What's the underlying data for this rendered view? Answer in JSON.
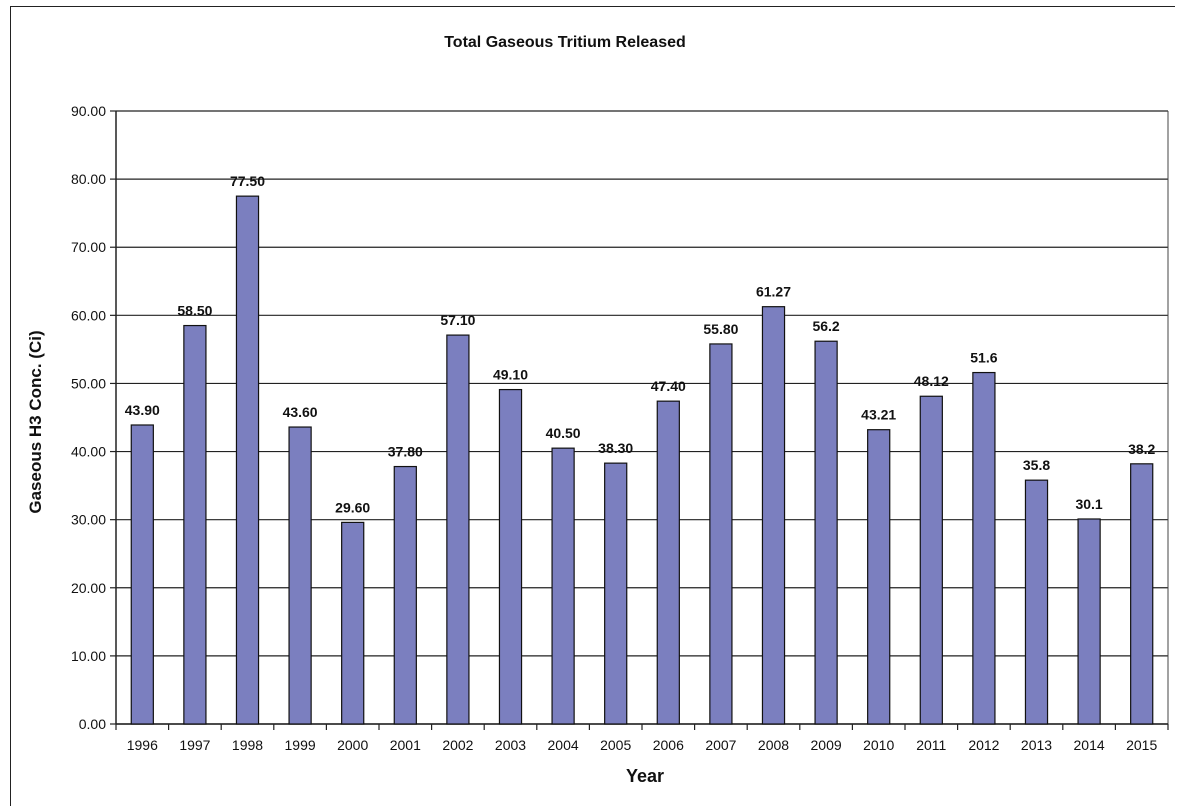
{
  "chart_data": {
    "type": "bar",
    "title": "Total Gaseous Tritium Released",
    "xlabel": "Year",
    "ylabel": "Gaseous H3 Conc. (Ci)",
    "ylim": [
      0,
      90
    ],
    "yticks": [
      0,
      10,
      20,
      30,
      40,
      50,
      60,
      70,
      80,
      90
    ],
    "ytick_labels": [
      "0.00",
      "10.00",
      "20.00",
      "30.00",
      "40.00",
      "50.00",
      "60.00",
      "70.00",
      "80.00",
      "90.00"
    ],
    "grid": true,
    "legend": "none",
    "bar_color": "#7b7fbf",
    "categories": [
      "1996",
      "1997",
      "1998",
      "1999",
      "2000",
      "2001",
      "2002",
      "2003",
      "2004",
      "2005",
      "2006",
      "2007",
      "2008",
      "2009",
      "2010",
      "2011",
      "2012",
      "2013",
      "2014",
      "2015"
    ],
    "values": [
      43.9,
      58.5,
      77.5,
      43.6,
      29.6,
      37.8,
      57.1,
      49.1,
      40.5,
      38.3,
      47.4,
      55.8,
      61.27,
      56.2,
      43.21,
      48.12,
      51.6,
      35.8,
      30.1,
      38.2
    ],
    "data_labels": [
      "43.90",
      "58.50",
      "77.50",
      "43.60",
      "29.60",
      "37.80",
      "57.10",
      "49.10",
      "40.50",
      "38.30",
      "47.40",
      "55.80",
      "61.27",
      "56.2",
      "43.21",
      "48.12",
      "51.6",
      "35.8",
      "30.1",
      "38.2"
    ]
  }
}
